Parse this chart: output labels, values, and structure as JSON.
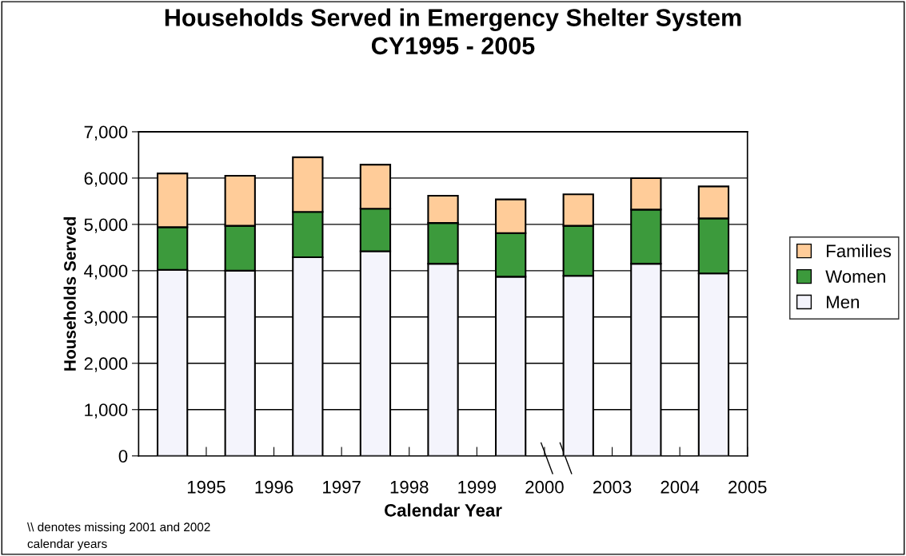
{
  "chart_data": {
    "type": "bar",
    "stacked": true,
    "title": "Households Served in Emergency Shelter System\nCY1995 - 2005",
    "xlabel": "Calendar Year",
    "ylabel": "Households Served",
    "categories": [
      "1995",
      "1996",
      "1997",
      "1998",
      "1999",
      "2000",
      "2003",
      "2004",
      "2005"
    ],
    "series": [
      {
        "name": "Men",
        "color": "#f4f4fc",
        "values": [
          4020,
          4000,
          4290,
          4420,
          4150,
          3870,
          3890,
          4150,
          3940
        ]
      },
      {
        "name": "Women",
        "color": "#3c9a3c",
        "values": [
          920,
          970,
          980,
          920,
          880,
          940,
          1080,
          1170,
          1190
        ]
      },
      {
        "name": "Families",
        "color": "#ffcc99",
        "values": [
          1160,
          1080,
          1180,
          950,
          590,
          730,
          680,
          680,
          690
        ]
      }
    ],
    "ylim": [
      0,
      7000
    ],
    "yticks": [
      {
        "value": 0,
        "label": "0"
      },
      {
        "value": 1000,
        "label": "1,000"
      },
      {
        "value": 2000,
        "label": "2,000"
      },
      {
        "value": 3000,
        "label": "3,000"
      },
      {
        "value": 4000,
        "label": "4,000"
      },
      {
        "value": 5000,
        "label": "5,000"
      },
      {
        "value": 6000,
        "label": "6,000"
      },
      {
        "value": 7000,
        "label": "7,000"
      }
    ],
    "grid": "y",
    "legend": "right",
    "annotations": [
      "\\\\ denotes missing 2001 and 2002\ncalendar years"
    ]
  }
}
